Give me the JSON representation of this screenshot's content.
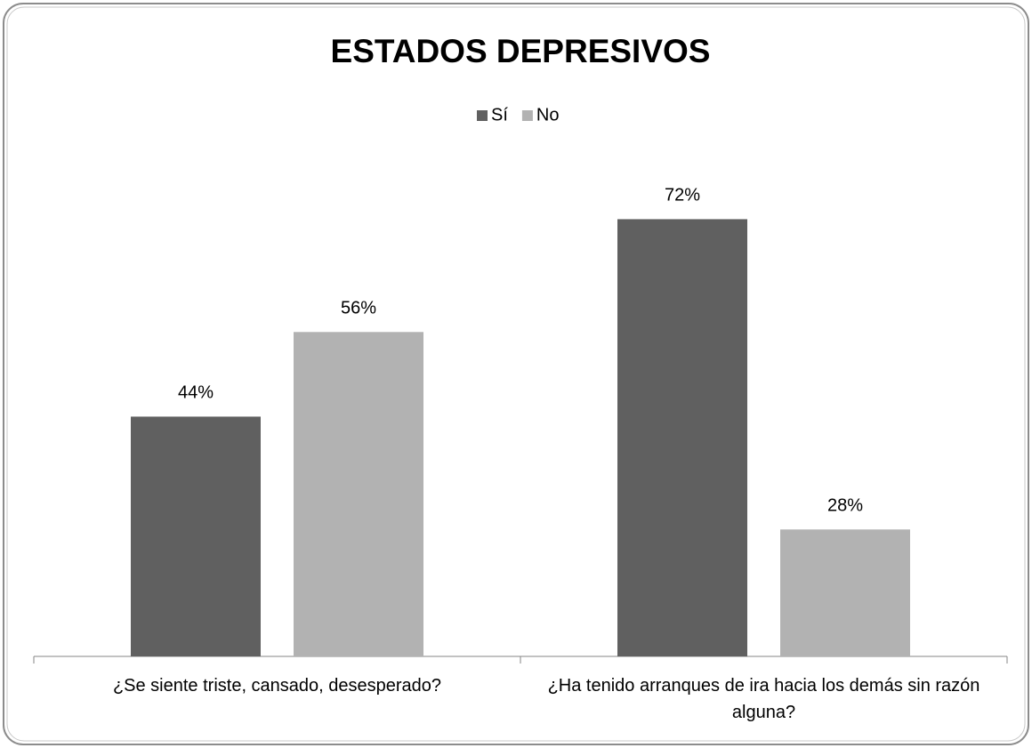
{
  "chart_data": {
    "type": "bar",
    "title": "ESTADOS DEPRESIVOS",
    "categories": [
      "¿Se siente triste, cansado, desesperado?",
      "¿Ha tenido arranques de ira hacia los demás sin razón alguna?"
    ],
    "series": [
      {
        "name": "Sí",
        "color": "#606060",
        "values": [
          44,
          72
        ],
        "value_labels": [
          "44%",
          "72%"
        ]
      },
      {
        "name": "No",
        "color": "#b2b2b2",
        "values": [
          56,
          28
        ],
        "value_labels": [
          "56%",
          "28%"
        ]
      }
    ],
    "ylim": [
      10,
      80
    ],
    "legend": "top"
  }
}
